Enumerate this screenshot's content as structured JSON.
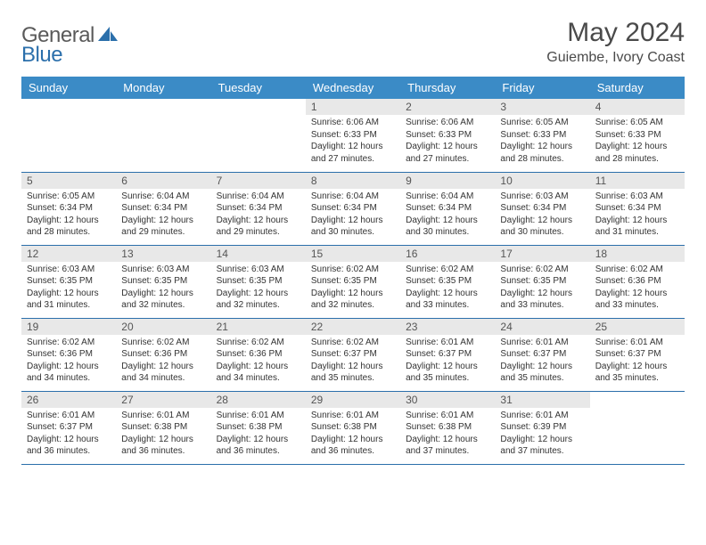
{
  "logo": {
    "text1": "General",
    "text2": "Blue"
  },
  "title": "May 2024",
  "location": "Guiembe, Ivory Coast",
  "colors": {
    "header_bg": "#3b8bc6",
    "header_text": "#ffffff",
    "daynum_bg": "#e8e8e8",
    "border": "#2b6fab",
    "logo_gray": "#5a5a5a",
    "logo_blue": "#2b6fab"
  },
  "weekdays": [
    "Sunday",
    "Monday",
    "Tuesday",
    "Wednesday",
    "Thursday",
    "Friday",
    "Saturday"
  ],
  "weeks": [
    [
      null,
      null,
      null,
      {
        "n": "1",
        "sr": "6:06 AM",
        "ss": "6:33 PM",
        "dl": "12 hours and 27 minutes."
      },
      {
        "n": "2",
        "sr": "6:06 AM",
        "ss": "6:33 PM",
        "dl": "12 hours and 27 minutes."
      },
      {
        "n": "3",
        "sr": "6:05 AM",
        "ss": "6:33 PM",
        "dl": "12 hours and 28 minutes."
      },
      {
        "n": "4",
        "sr": "6:05 AM",
        "ss": "6:33 PM",
        "dl": "12 hours and 28 minutes."
      }
    ],
    [
      {
        "n": "5",
        "sr": "6:05 AM",
        "ss": "6:34 PM",
        "dl": "12 hours and 28 minutes."
      },
      {
        "n": "6",
        "sr": "6:04 AM",
        "ss": "6:34 PM",
        "dl": "12 hours and 29 minutes."
      },
      {
        "n": "7",
        "sr": "6:04 AM",
        "ss": "6:34 PM",
        "dl": "12 hours and 29 minutes."
      },
      {
        "n": "8",
        "sr": "6:04 AM",
        "ss": "6:34 PM",
        "dl": "12 hours and 30 minutes."
      },
      {
        "n": "9",
        "sr": "6:04 AM",
        "ss": "6:34 PM",
        "dl": "12 hours and 30 minutes."
      },
      {
        "n": "10",
        "sr": "6:03 AM",
        "ss": "6:34 PM",
        "dl": "12 hours and 30 minutes."
      },
      {
        "n": "11",
        "sr": "6:03 AM",
        "ss": "6:34 PM",
        "dl": "12 hours and 31 minutes."
      }
    ],
    [
      {
        "n": "12",
        "sr": "6:03 AM",
        "ss": "6:35 PM",
        "dl": "12 hours and 31 minutes."
      },
      {
        "n": "13",
        "sr": "6:03 AM",
        "ss": "6:35 PM",
        "dl": "12 hours and 32 minutes."
      },
      {
        "n": "14",
        "sr": "6:03 AM",
        "ss": "6:35 PM",
        "dl": "12 hours and 32 minutes."
      },
      {
        "n": "15",
        "sr": "6:02 AM",
        "ss": "6:35 PM",
        "dl": "12 hours and 32 minutes."
      },
      {
        "n": "16",
        "sr": "6:02 AM",
        "ss": "6:35 PM",
        "dl": "12 hours and 33 minutes."
      },
      {
        "n": "17",
        "sr": "6:02 AM",
        "ss": "6:35 PM",
        "dl": "12 hours and 33 minutes."
      },
      {
        "n": "18",
        "sr": "6:02 AM",
        "ss": "6:36 PM",
        "dl": "12 hours and 33 minutes."
      }
    ],
    [
      {
        "n": "19",
        "sr": "6:02 AM",
        "ss": "6:36 PM",
        "dl": "12 hours and 34 minutes."
      },
      {
        "n": "20",
        "sr": "6:02 AM",
        "ss": "6:36 PM",
        "dl": "12 hours and 34 minutes."
      },
      {
        "n": "21",
        "sr": "6:02 AM",
        "ss": "6:36 PM",
        "dl": "12 hours and 34 minutes."
      },
      {
        "n": "22",
        "sr": "6:02 AM",
        "ss": "6:37 PM",
        "dl": "12 hours and 35 minutes."
      },
      {
        "n": "23",
        "sr": "6:01 AM",
        "ss": "6:37 PM",
        "dl": "12 hours and 35 minutes."
      },
      {
        "n": "24",
        "sr": "6:01 AM",
        "ss": "6:37 PM",
        "dl": "12 hours and 35 minutes."
      },
      {
        "n": "25",
        "sr": "6:01 AM",
        "ss": "6:37 PM",
        "dl": "12 hours and 35 minutes."
      }
    ],
    [
      {
        "n": "26",
        "sr": "6:01 AM",
        "ss": "6:37 PM",
        "dl": "12 hours and 36 minutes."
      },
      {
        "n": "27",
        "sr": "6:01 AM",
        "ss": "6:38 PM",
        "dl": "12 hours and 36 minutes."
      },
      {
        "n": "28",
        "sr": "6:01 AM",
        "ss": "6:38 PM",
        "dl": "12 hours and 36 minutes."
      },
      {
        "n": "29",
        "sr": "6:01 AM",
        "ss": "6:38 PM",
        "dl": "12 hours and 36 minutes."
      },
      {
        "n": "30",
        "sr": "6:01 AM",
        "ss": "6:38 PM",
        "dl": "12 hours and 37 minutes."
      },
      {
        "n": "31",
        "sr": "6:01 AM",
        "ss": "6:39 PM",
        "dl": "12 hours and 37 minutes."
      },
      null
    ]
  ],
  "labels": {
    "sunrise": "Sunrise:",
    "sunset": "Sunset:",
    "daylight": "Daylight:"
  }
}
